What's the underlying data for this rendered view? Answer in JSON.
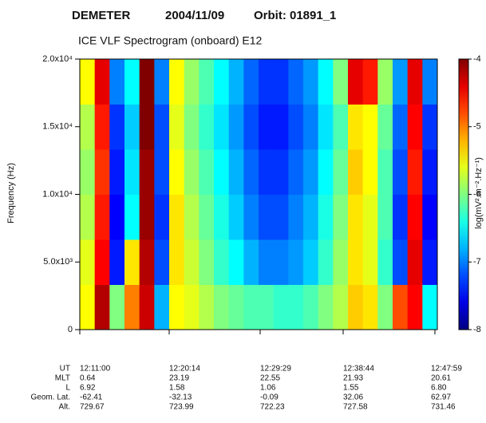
{
  "chart_data": {
    "type": "heatmap",
    "satellite": "DEMETER",
    "date": "2004/11/09",
    "orbit": "Orbit: 01891_1",
    "title": "ICE VLF Spectrogram (onboard) E12",
    "y_label": "Frequency (Hz)",
    "colorbar_label": "log(mV².m⁻².Hz⁻¹)",
    "ylim": [
      0,
      20000
    ],
    "yticks": [
      0,
      {
        "value": 5000,
        "label": "5.0x10³"
      },
      {
        "value": 10000,
        "label": "1.0x10⁴"
      },
      {
        "value": 15000,
        "label": "1.5x10⁴"
      },
      {
        "value": 20000,
        "label": "2.0x10⁴"
      }
    ],
    "zlim": [
      -8,
      -4
    ],
    "zticks": [
      -4,
      -5,
      -6,
      -7,
      -8
    ],
    "colormap": "jet",
    "z": [
      [
        -5.5,
        -4.2,
        -6.0,
        -5.0,
        -4.3,
        -6.8,
        -5.5,
        -5.6,
        -5.8,
        -6.0,
        -6.1,
        -6.2,
        -6.2,
        -6.3,
        -6.3,
        -6.2,
        -6.0,
        -5.8,
        -5.3,
        -5.4,
        -6.0,
        -4.8,
        -4.5,
        -6.5
      ],
      [
        -5.6,
        -4.5,
        -7.4,
        -5.4,
        -4.2,
        -7.2,
        -5.4,
        -5.7,
        -6.0,
        -6.3,
        -6.5,
        -6.8,
        -7.0,
        -7.0,
        -6.9,
        -6.7,
        -6.3,
        -5.9,
        -5.4,
        -5.6,
        -6.3,
        -7.2,
        -4.4,
        -7.4
      ],
      [
        -5.8,
        -4.6,
        -7.5,
        -6.5,
        -4.1,
        -7.3,
        -5.4,
        -5.8,
        -6.1,
        -6.4,
        -6.7,
        -7.0,
        -7.2,
        -7.2,
        -7.0,
        -6.8,
        -6.4,
        -6.0,
        -5.4,
        -5.6,
        -6.2,
        -7.3,
        -4.5,
        -7.5
      ],
      [
        -5.9,
        -4.7,
        -7.4,
        -6.6,
        -4.1,
        -7.2,
        -5.5,
        -5.9,
        -6.2,
        -6.5,
        -6.8,
        -7.1,
        -7.3,
        -7.3,
        -7.1,
        -6.9,
        -6.5,
        -6.1,
        -5.3,
        -5.5,
        -6.2,
        -7.2,
        -4.6,
        -7.4
      ],
      [
        -5.8,
        -4.6,
        -7.3,
        -6.7,
        -4.0,
        -7.2,
        -5.6,
        -6.0,
        -6.3,
        -6.6,
        -6.9,
        -7.2,
        -7.4,
        -7.4,
        -7.2,
        -7.0,
        -6.6,
        -6.2,
        -5.4,
        -5.5,
        -6.1,
        -7.1,
        -4.5,
        -7.3
      ],
      [
        -5.5,
        -4.4,
        -7.0,
        -6.5,
        -4.0,
        -7.0,
        -5.5,
        -5.9,
        -6.2,
        -6.5,
        -6.8,
        -7.1,
        -7.3,
        -7.3,
        -7.1,
        -6.9,
        -6.5,
        -6.0,
        -4.4,
        -4.6,
        -5.9,
        -6.9,
        -4.4,
        -7.0
      ]
    ],
    "ephemeris": {
      "labels": [
        "UT",
        "MLT",
        "L",
        "Geom. Lat.",
        "Alt."
      ],
      "columns": [
        [
          "12:11:00",
          "0.64",
          "6.92",
          "-62.41",
          "729.67"
        ],
        [
          "12:20:14",
          "23.19",
          "1.58",
          "-32.13",
          "723.99"
        ],
        [
          "12:29:29",
          "22.55",
          "1.06",
          "-0.09",
          "722.23"
        ],
        [
          "12:38:44",
          "21.93",
          "1.55",
          "32.06",
          "727.58"
        ],
        [
          "12:47:59",
          "20.61",
          "6.80",
          "62.97",
          "731.46"
        ]
      ]
    }
  }
}
